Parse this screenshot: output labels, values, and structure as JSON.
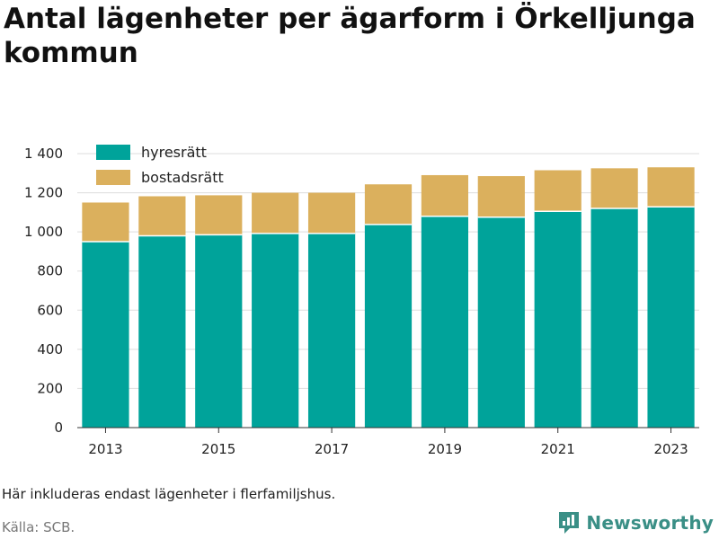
{
  "title": "Antal lägenheter per ägarform i Örkelljunga kommun",
  "note": "Här inkluderas endast lägenheter i flerfamiljshus.",
  "source": "Källa: SCB.",
  "brand": {
    "name": "Newsworthy",
    "icon": "newsworthy-logo-icon"
  },
  "colors": {
    "hyresratt": "#00a39a",
    "bostadsratt": "#dbb05d",
    "grid": "#dddddd",
    "axis": "#333333"
  },
  "chart_data": {
    "type": "bar",
    "stacked": true,
    "x": [
      2013,
      2014,
      2015,
      2016,
      2017,
      2018,
      2019,
      2020,
      2021,
      2022,
      2023
    ],
    "x_tick_labels": [
      "2013",
      "2015",
      "2017",
      "2019",
      "2021",
      "2023"
    ],
    "series": [
      {
        "name": "hyresrätt",
        "color": "#00a39a",
        "values": [
          950,
          980,
          985,
          992,
          992,
          1038,
          1080,
          1075,
          1105,
          1120,
          1128
        ]
      },
      {
        "name": "bostadsrätt",
        "color": "#dbb05d",
        "values": [
          200,
          202,
          202,
          208,
          208,
          205,
          210,
          210,
          210,
          205,
          202
        ]
      }
    ],
    "ylim": [
      0,
      1400
    ],
    "y_ticks": [
      0,
      200,
      400,
      600,
      800,
      1000,
      1200,
      1400
    ],
    "y_tick_labels": [
      "0",
      "200",
      "400",
      "600",
      "800",
      "1 000",
      "1 200",
      "1 400"
    ],
    "grid": true,
    "legend_position": "top-left"
  }
}
